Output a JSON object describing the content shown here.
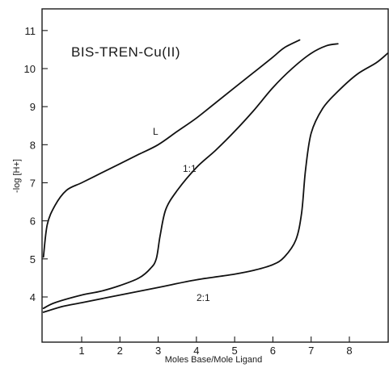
{
  "chart_data": {
    "type": "line",
    "title": "BIS-TREN-Cu(II)",
    "xlabel": "Moles Base/Mole Ligand",
    "ylabel": "-log [H+]",
    "xlim": [
      0,
      9
    ],
    "ylim": [
      3,
      11.5
    ],
    "x_ticks": [
      1,
      2,
      3,
      4,
      5,
      6,
      7,
      8
    ],
    "y_ticks": [
      4,
      5,
      6,
      7,
      8,
      9,
      10,
      11
    ],
    "grid": false,
    "series": [
      {
        "name": "L",
        "points": [
          [
            0,
            5.05
          ],
          [
            0.1,
            5.9
          ],
          [
            0.3,
            6.4
          ],
          [
            0.6,
            6.8
          ],
          [
            1,
            7.0
          ],
          [
            1.5,
            7.25
          ],
          [
            2,
            7.5
          ],
          [
            2.5,
            7.75
          ],
          [
            3,
            8.0
          ],
          [
            3.5,
            8.35
          ],
          [
            4,
            8.7
          ],
          [
            4.5,
            9.1
          ],
          [
            5,
            9.5
          ],
          [
            5.5,
            9.9
          ],
          [
            6,
            10.3
          ],
          [
            6.3,
            10.55
          ],
          [
            6.7,
            10.75
          ]
        ]
      },
      {
        "name": "1:1",
        "points": [
          [
            0,
            3.7
          ],
          [
            0.3,
            3.85
          ],
          [
            1,
            4.05
          ],
          [
            1.5,
            4.15
          ],
          [
            2,
            4.3
          ],
          [
            2.5,
            4.5
          ],
          [
            2.8,
            4.75
          ],
          [
            2.95,
            5.0
          ],
          [
            3.05,
            5.6
          ],
          [
            3.2,
            6.3
          ],
          [
            3.5,
            6.8
          ],
          [
            4,
            7.4
          ],
          [
            4.5,
            7.85
          ],
          [
            5,
            8.35
          ],
          [
            5.5,
            8.9
          ],
          [
            6,
            9.5
          ],
          [
            6.5,
            10.0
          ],
          [
            7,
            10.4
          ],
          [
            7.4,
            10.6
          ],
          [
            7.7,
            10.65
          ]
        ]
      },
      {
        "name": "2:1",
        "points": [
          [
            0,
            3.6
          ],
          [
            0.5,
            3.75
          ],
          [
            1,
            3.85
          ],
          [
            2,
            4.05
          ],
          [
            3,
            4.25
          ],
          [
            4,
            4.45
          ],
          [
            5,
            4.6
          ],
          [
            5.5,
            4.7
          ],
          [
            6,
            4.85
          ],
          [
            6.3,
            5.05
          ],
          [
            6.6,
            5.5
          ],
          [
            6.75,
            6.2
          ],
          [
            6.85,
            7.3
          ],
          [
            7,
            8.3
          ],
          [
            7.3,
            8.95
          ],
          [
            7.7,
            9.4
          ],
          [
            8.2,
            9.85
          ],
          [
            8.7,
            10.15
          ],
          [
            9,
            10.4
          ]
        ]
      }
    ],
    "curve_labels": [
      "L",
      "1:1",
      "2:1"
    ]
  }
}
